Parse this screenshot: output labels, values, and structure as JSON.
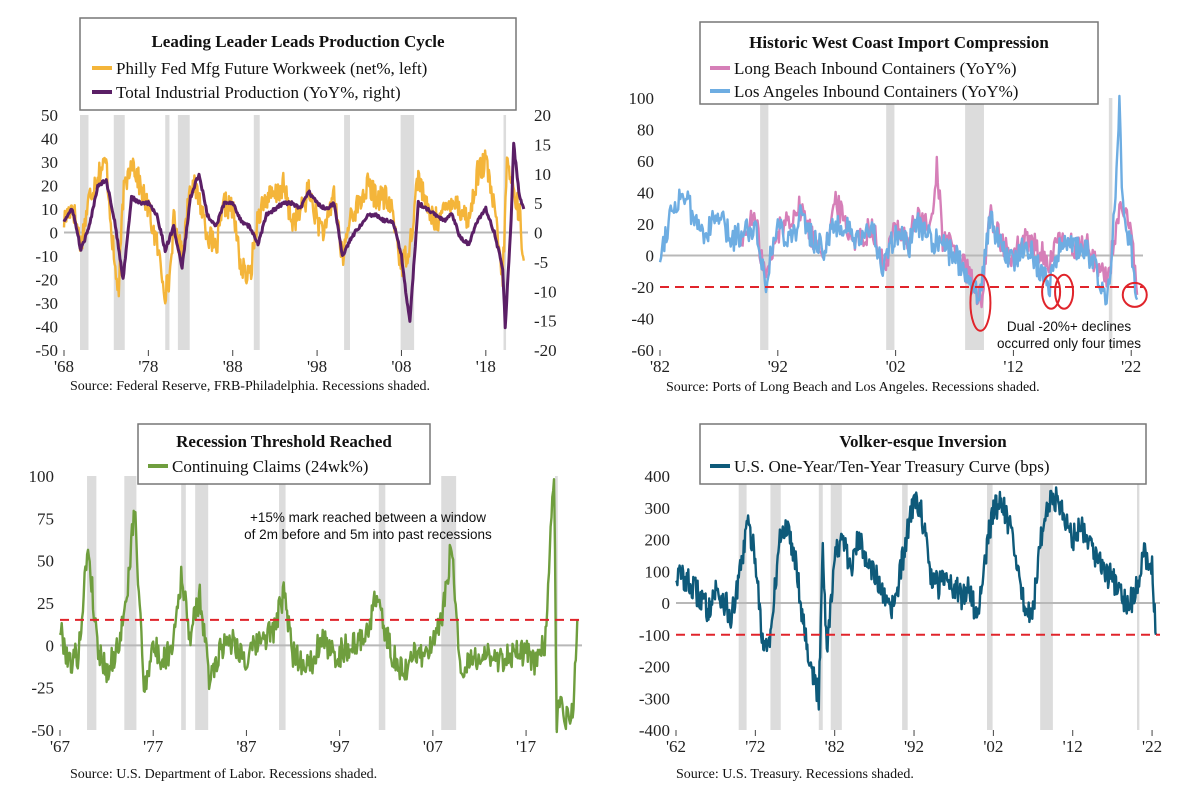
{
  "chart_data": [
    {
      "id": "philly",
      "type": "line",
      "title": "Leading Leader Leads Production Cycle",
      "x_tick_labels": [
        "'68",
        "'78",
        "'88",
        "'98",
        "'08",
        "'18"
      ],
      "x_ticks": [
        1968,
        1978,
        1988,
        1998,
        2008,
        2018
      ],
      "xlim": [
        1968,
        2023
      ],
      "y_left_ticks": [
        50,
        40,
        30,
        20,
        10,
        0,
        -10,
        -20,
        -30,
        -40,
        -50
      ],
      "y_left_lim": [
        -50,
        50
      ],
      "y_right_ticks": [
        20,
        15,
        10,
        5,
        0,
        -5,
        -10,
        -15,
        -20
      ],
      "y_right_lim": [
        -20,
        20
      ],
      "recessions": [
        [
          1969.9,
          1970.9
        ],
        [
          1973.9,
          1975.2
        ],
        [
          1980.0,
          1980.5
        ],
        [
          1981.5,
          1982.9
        ],
        [
          1990.5,
          1991.2
        ],
        [
          2001.2,
          2001.9
        ],
        [
          2007.9,
          2009.5
        ],
        [
          2020.1,
          2020.4
        ]
      ],
      "series": [
        {
          "name": "Philly Fed Mfg Future Workweek (net%, left)",
          "axis": "left",
          "color": "#F4B53A",
          "x": [
            1968,
            1969,
            1970,
            1971,
            1972,
            1973,
            1974,
            1974.5,
            1975,
            1976,
            1977,
            1978,
            1979,
            1980,
            1980.5,
            1981,
            1982,
            1983,
            1984,
            1985,
            1986,
            1987,
            1988,
            1989,
            1990,
            1991,
            1992,
            1993,
            1994,
            1995,
            1996,
            1997,
            1998,
            1999,
            2000,
            2001,
            2002,
            2003,
            2004,
            2005,
            2006,
            2007,
            2008,
            2009,
            2010,
            2011,
            2012,
            2013,
            2014,
            2015,
            2016,
            2017,
            2018,
            2019,
            2020,
            2020.5,
            2021,
            2022,
            2022.5
          ],
          "y": [
            5,
            12,
            -5,
            15,
            25,
            30,
            -15,
            -25,
            15,
            32,
            20,
            10,
            -5,
            -25,
            -20,
            5,
            -10,
            22,
            15,
            0,
            -8,
            12,
            10,
            -15,
            -20,
            8,
            15,
            15,
            20,
            5,
            8,
            18,
            5,
            0,
            18,
            -12,
            8,
            12,
            20,
            15,
            15,
            8,
            -15,
            -5,
            25,
            10,
            5,
            8,
            15,
            10,
            5,
            25,
            30,
            10,
            -20,
            30,
            22,
            8,
            -12
          ]
        },
        {
          "name": "Total Industrial Production (YoY%, right)",
          "axis": "right",
          "color": "#5B1F66",
          "x": [
            1968,
            1969,
            1970,
            1971,
            1972,
            1973,
            1974,
            1975,
            1976,
            1977,
            1978,
            1979,
            1980,
            1981,
            1982,
            1983,
            1984,
            1985,
            1986,
            1987,
            1988,
            1989,
            1990,
            1991,
            1992,
            1993,
            1994,
            1995,
            1996,
            1997,
            1998,
            1999,
            2000,
            2001,
            2002,
            2003,
            2004,
            2005,
            2006,
            2007,
            2008,
            2008.5,
            2009,
            2010,
            2011,
            2012,
            2013,
            2014,
            2015,
            2016,
            2017,
            2018,
            2019,
            2020,
            2020.3,
            2021,
            2021.3,
            2022,
            2022.5
          ],
          "y": [
            2,
            4,
            -3,
            1,
            8,
            9,
            2,
            -8,
            6,
            5,
            5,
            3,
            -3,
            1,
            -6,
            6,
            10,
            3,
            1,
            5,
            5,
            2,
            1,
            -2,
            3,
            4,
            5,
            5,
            4,
            7,
            5,
            4,
            5,
            -4,
            -1,
            1,
            3,
            3,
            2,
            2,
            -4,
            -10,
            -15,
            5,
            4,
            3,
            2,
            3,
            -1,
            -2,
            2,
            4,
            0,
            -6,
            -16,
            2,
            15,
            6,
            4
          ]
        }
      ],
      "source": "Source: Federal Reserve, FRB-Philadelphia. Recessions shaded."
    },
    {
      "id": "ports",
      "type": "line",
      "title": "Historic West Coast Import Compression",
      "x_tick_labels": [
        "'82",
        "'92",
        "'02",
        "'12",
        "'22"
      ],
      "x_ticks": [
        1982,
        1992,
        2002,
        2012,
        2022
      ],
      "xlim": [
        1982,
        2023
      ],
      "y_ticks": [
        100,
        80,
        60,
        40,
        20,
        0,
        -20,
        -40,
        -60
      ],
      "ylim": [
        -60,
        100
      ],
      "threshold": -20,
      "recessions": [
        [
          1990.5,
          1991.2
        ],
        [
          2001.2,
          2001.9
        ],
        [
          2007.9,
          2009.5
        ],
        [
          2020.1,
          2020.4
        ]
      ],
      "series": [
        {
          "name": "Long Beach Inbound Containers (YoY%)",
          "color": "#D67FB8",
          "x": [
            1989,
            1990,
            1991,
            1992,
            1993,
            1994,
            1995,
            1996,
            1997,
            1998,
            1999,
            2000,
            2001,
            2002,
            2003,
            2004,
            2005,
            2005.5,
            2006,
            2007,
            2008,
            2009,
            2009.3,
            2010,
            2011,
            2012,
            2013,
            2014,
            2015,
            2016,
            2017,
            2018,
            2019,
            2020,
            2021,
            2022,
            2022.5
          ],
          "y": [
            10,
            25,
            -15,
            15,
            25,
            30,
            10,
            5,
            35,
            15,
            10,
            20,
            -10,
            20,
            10,
            25,
            15,
            60,
            10,
            5,
            -10,
            -25,
            -35,
            30,
            5,
            0,
            10,
            5,
            -5,
            10,
            5,
            10,
            -5,
            -15,
            30,
            15,
            -25
          ]
        },
        {
          "name": "Los Angeles Inbound Containers (YoY%)",
          "color": "#6EADE2",
          "x": [
            1982,
            1983,
            1984,
            1985,
            1986,
            1987,
            1988,
            1989,
            1990,
            1991,
            1992,
            1993,
            1994,
            1995,
            1996,
            1997,
            1998,
            1999,
            2000,
            2001,
            2002,
            2003,
            2004,
            2005,
            2006,
            2007,
            2008,
            2009,
            2009.3,
            2010,
            2011,
            2012,
            2013,
            2014,
            2015,
            2016,
            2017,
            2018,
            2019,
            2020,
            2020.5,
            2021,
            2021.3,
            2022,
            2022.5
          ],
          "y": [
            0,
            30,
            40,
            20,
            15,
            25,
            10,
            15,
            20,
            -15,
            20,
            10,
            25,
            10,
            5,
            20,
            15,
            5,
            20,
            -10,
            15,
            5,
            20,
            10,
            5,
            0,
            -10,
            -25,
            -20,
            25,
            5,
            -5,
            10,
            -5,
            -20,
            10,
            5,
            5,
            -10,
            -25,
            20,
            95,
            30,
            5,
            -28
          ]
        }
      ],
      "annotation": [
        "Dual -20%+ declines",
        "occurred only four times"
      ],
      "source": "Source: Ports of Long Beach and Los Angeles. Recessions shaded."
    },
    {
      "id": "claims",
      "type": "line",
      "title": "Recession Threshold Reached",
      "x_tick_labels": [
        "'67",
        "'77",
        "'87",
        "'97",
        "'07",
        "'17"
      ],
      "x_ticks": [
        1967,
        1977,
        1987,
        1997,
        2007,
        2017
      ],
      "xlim": [
        1967,
        2023
      ],
      "y_ticks": [
        100,
        75,
        50,
        25,
        0,
        -25,
        -50
      ],
      "ylim": [
        -50,
        100
      ],
      "threshold": 15,
      "recessions": [
        [
          1969.9,
          1970.9
        ],
        [
          1973.9,
          1975.2
        ],
        [
          1980.0,
          1980.5
        ],
        [
          1981.5,
          1982.9
        ],
        [
          1990.5,
          1991.2
        ],
        [
          2001.2,
          2001.9
        ],
        [
          2007.9,
          2009.5
        ],
        [
          2020.1,
          2020.4
        ]
      ],
      "series": [
        {
          "name": "Continuing Claims (24wk%)",
          "color": "#6F9E3E",
          "x": [
            1967,
            1968,
            1969,
            1970,
            1971,
            1972,
            1973,
            1974,
            1975,
            1976,
            1977,
            1978,
            1979,
            1980,
            1981,
            1982,
            1983,
            1984,
            1985,
            1986,
            1987,
            1988,
            1989,
            1990,
            1991,
            1992,
            1993,
            1994,
            1995,
            1996,
            1997,
            1998,
            1999,
            2000,
            2001,
            2002,
            2003,
            2004,
            2005,
            2006,
            2007,
            2008,
            2009,
            2010,
            2011,
            2012,
            2013,
            2014,
            2015,
            2016,
            2017,
            2018,
            2019,
            2020,
            2020.3,
            2020.6,
            2021,
            2022,
            2022.5
          ],
          "y": [
            10,
            -10,
            -5,
            60,
            0,
            -15,
            -5,
            20,
            80,
            -25,
            0,
            -10,
            0,
            40,
            5,
            30,
            -20,
            -5,
            5,
            0,
            -10,
            0,
            5,
            10,
            30,
            -5,
            -10,
            -10,
            5,
            -5,
            -5,
            0,
            0,
            10,
            30,
            5,
            -10,
            -15,
            -5,
            -5,
            0,
            15,
            60,
            -20,
            -10,
            -5,
            -5,
            -10,
            -5,
            -5,
            -5,
            -10,
            0,
            100,
            -50,
            -30,
            -45,
            -40,
            15
          ]
        }
      ],
      "annotation": [
        "+15% mark reached between a window",
        "of 2m before and 5m into past recessions"
      ],
      "source": "Source: U.S. Department of Labor. Recessions shaded."
    },
    {
      "id": "curve",
      "type": "line",
      "title": "Volker-esque Inversion",
      "x_tick_labels": [
        "'62",
        "'72",
        "'82",
        "'92",
        "'02",
        "'12",
        "'22"
      ],
      "x_ticks": [
        1962,
        1972,
        1982,
        1992,
        2002,
        2012,
        2022
      ],
      "xlim": [
        1962,
        2023
      ],
      "y_ticks": [
        400,
        300,
        200,
        100,
        0,
        -100,
        -200,
        -300,
        -400
      ],
      "ylim": [
        -400,
        400
      ],
      "threshold": -100,
      "recessions": [
        [
          1969.9,
          1970.9
        ],
        [
          1973.9,
          1975.2
        ],
        [
          1980.0,
          1980.5
        ],
        [
          1981.5,
          1982.9
        ],
        [
          1990.5,
          1991.2
        ],
        [
          2001.2,
          2001.9
        ],
        [
          2007.9,
          2009.5
        ],
        [
          2020.1,
          2020.4
        ]
      ],
      "series": [
        {
          "name": "U.S. One-Year/Ten-Year Treasury Curve (bps)",
          "color": "#0E5A7A",
          "x": [
            1962,
            1963,
            1964,
            1965,
            1966,
            1967,
            1968,
            1969,
            1970,
            1971,
            1972,
            1973,
            1974,
            1975,
            1976,
            1977,
            1978,
            1979,
            1980,
            1980.5,
            1981,
            1982,
            1983,
            1984,
            1985,
            1986,
            1987,
            1988,
            1989,
            1990,
            1991,
            1992,
            1993,
            1994,
            1995,
            1996,
            1997,
            1998,
            1999,
            2000,
            2001,
            2002,
            2003,
            2004,
            2005,
            2006,
            2007,
            2008,
            2009,
            2010,
            2011,
            2012,
            2013,
            2014,
            2015,
            2016,
            2017,
            2018,
            2019,
            2020,
            2021,
            2022,
            2022.5
          ],
          "y": [
            90,
            80,
            50,
            20,
            -20,
            40,
            10,
            -50,
            80,
            250,
            150,
            -150,
            -100,
            200,
            240,
            150,
            -50,
            -200,
            -300,
            200,
            -150,
            150,
            200,
            100,
            200,
            150,
            100,
            20,
            -30,
            50,
            200,
            330,
            280,
            100,
            50,
            100,
            50,
            20,
            50,
            -50,
            150,
            300,
            320,
            250,
            100,
            -20,
            -20,
            200,
            330,
            320,
            280,
            200,
            250,
            200,
            150,
            100,
            80,
            30,
            -20,
            50,
            150,
            120,
            -100
          ]
        }
      ],
      "source": "Source: U.S. Treasury. Recessions shaded."
    }
  ]
}
